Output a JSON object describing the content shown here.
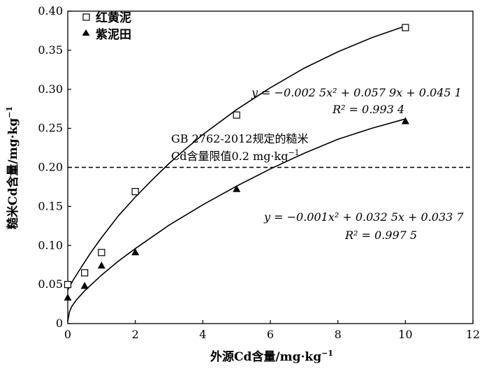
{
  "chart_data": {
    "type": "scatter",
    "xlabel": "外源Cd含量/mg·kg",
    "xlabel_sup": "−1",
    "ylabel": "糙米Cd含量/mg·kg",
    "ylabel_sup": "−1",
    "xlim": [
      0,
      12
    ],
    "ylim": [
      0,
      0.4
    ],
    "xticks": [
      "0",
      "2",
      "4",
      "6",
      "8",
      "10",
      "12"
    ],
    "yticks": [
      "0",
      "0.05",
      "0.10",
      "0.15",
      "0.20",
      "0.25",
      "0.30",
      "0.35",
      "0.40"
    ],
    "grid": false,
    "legend_position": "top-left",
    "series": [
      {
        "name": "红黄泥",
        "marker": "open-square",
        "x": [
          0,
          0.5,
          1,
          2,
          5,
          10
        ],
        "y": [
          0.05,
          0.065,
          0.091,
          0.169,
          0.267,
          0.379
        ]
      },
      {
        "name": "紫泥田",
        "marker": "filled-triangle",
        "x": [
          0,
          0.5,
          1,
          2,
          5,
          10
        ],
        "y": [
          0.033,
          0.048,
          0.074,
          0.091,
          0.172,
          0.259
        ]
      }
    ],
    "threshold": {
      "y": 0.2,
      "style": "dashed",
      "label_line1": "GB 2762-2012规定的糙米",
      "label_line2": "Cd含量限值0.2 mg·kg",
      "label_sup": "−1"
    },
    "fits": [
      {
        "series": "红黄泥",
        "equation": "y = −0.002 5x² + 0.057 9x + 0.045 1",
        "r2": "R² = 0.993 4"
      },
      {
        "series": "紫泥田",
        "equation": "y = −0.001x² + 0.032 5x + 0.033 7",
        "r2": "R² = 0.997 5"
      }
    ]
  }
}
